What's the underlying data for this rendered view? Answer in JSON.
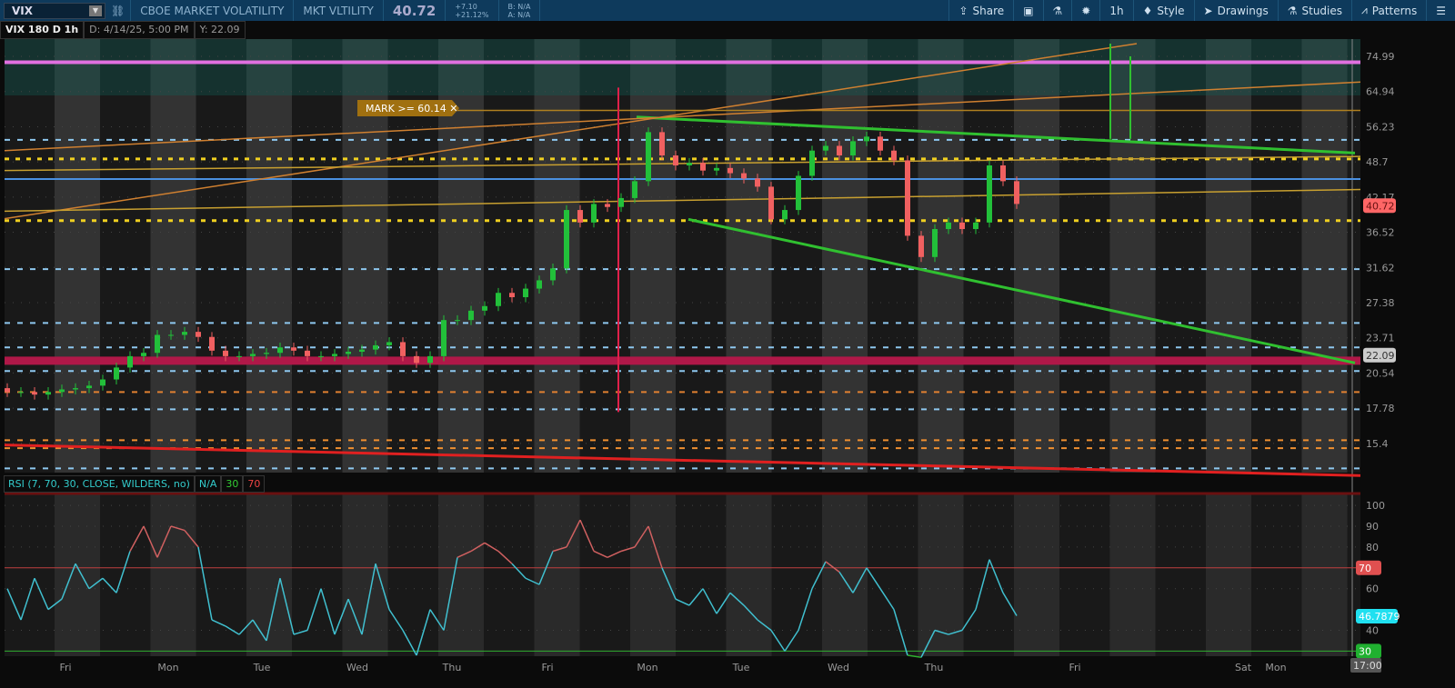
{
  "header": {
    "symbol": "VIX",
    "description": "CBOE MARKET VOLATILITY",
    "short_name": "MKT VLTILITY",
    "last": "40.72",
    "change": "+7.10",
    "change_pct": "+21.12%",
    "bid": "B: N/A",
    "ask": "A: N/A",
    "toolbar": [
      {
        "icon": "share-icon",
        "label": "Share"
      },
      {
        "icon": "chart-settings-icon",
        "label": ""
      },
      {
        "icon": "flask-icon",
        "label": ""
      },
      {
        "icon": "gear-icon",
        "label": ""
      },
      {
        "icon": "",
        "label": "1h"
      },
      {
        "icon": "candle-style-icon",
        "label": "Style"
      },
      {
        "icon": "cursor-icon",
        "label": "Drawings"
      },
      {
        "icon": "flask-icon",
        "label": "Studies"
      },
      {
        "icon": "patterns-icon",
        "label": "Patterns"
      },
      {
        "icon": "menu-icon",
        "label": ""
      }
    ]
  },
  "subheader": {
    "chart": "VIX 180 D 1h",
    "date": "D: 4/14/25, 5:00 PM",
    "y": "Y: 22.09"
  },
  "alert": {
    "label": "MARK >= 60.14 ✕"
  },
  "chart_data": [
    {
      "type": "candlestick",
      "scale": "log",
      "yticks": [
        "74.99",
        "64.94",
        "56.23",
        "48.7",
        "42.17",
        "36.52",
        "31.62",
        "27.38",
        "23.71",
        "20.54",
        "17.78",
        "15.4"
      ],
      "closes": [
        19,
        19,
        18.8,
        19,
        19.2,
        19.3,
        19.5,
        20,
        21,
        22,
        22.3,
        24,
        24,
        24.3,
        23.8,
        22.5,
        22,
        22,
        22.2,
        22.3,
        22.8,
        22.5,
        22,
        22,
        22.2,
        22.4,
        22.6,
        23,
        23.3,
        22,
        21.4,
        22,
        25.5,
        25.5,
        26.5,
        27,
        28.5,
        28,
        29,
        30,
        31.5,
        40,
        38,
        41,
        40.5,
        42,
        45,
        55,
        50,
        48,
        48.5,
        47,
        47.5,
        46.5,
        45.5,
        44,
        38.5,
        40,
        46,
        51,
        52,
        50,
        53,
        54,
        51,
        49,
        36,
        33,
        37,
        38,
        37,
        38,
        48,
        45,
        41
      ],
      "open_first": 19.3,
      "price_label": "40.72",
      "price_color": "#ff6666",
      "cursor_label": "22.09",
      "levels": [
        {
          "price": 73.2,
          "color": "#e070e0",
          "style": "solid"
        },
        {
          "price": 53.3,
          "color": "#8ec8ef",
          "style": "dash"
        },
        {
          "price": 49.3,
          "color": "#f0d020",
          "style": "dot"
        },
        {
          "price": 45.4,
          "color": "#4a90e0",
          "style": "solid"
        },
        {
          "price": 38.3,
          "color": "#f0d020",
          "style": "dot"
        },
        {
          "price": 31.4,
          "color": "#8ec8ef",
          "style": "dash"
        },
        {
          "price": 25.2,
          "color": "#8ec8ef",
          "style": "dash"
        },
        {
          "price": 22.8,
          "color": "#8ec8ef",
          "style": "dash"
        },
        {
          "price": 21.6,
          "color": "#b01848",
          "style": "band"
        },
        {
          "price": 20.7,
          "color": "#8ec8ef",
          "style": "dash"
        },
        {
          "price": 19.0,
          "color": "#e08030",
          "style": "dash"
        },
        {
          "price": 17.7,
          "color": "#8ec8ef",
          "style": "dash"
        },
        {
          "price": 15.6,
          "color": "#f09030",
          "style": "dash"
        },
        {
          "price": 15.1,
          "color": "#f09030",
          "style": "dash"
        },
        {
          "price": 13.9,
          "color": "#8ec8ef",
          "style": "dash"
        }
      ]
    },
    {
      "type": "line",
      "title": "RSI (7, 70, 30, CLOSE, WILDERS, no)",
      "value": "N/A",
      "oversold": "30",
      "overbought": "70",
      "last": "46.7879",
      "yticks": [
        "100",
        "90",
        "80",
        "60",
        "40"
      ],
      "values": [
        60,
        45,
        65,
        50,
        55,
        72,
        60,
        65,
        58,
        78,
        90,
        75,
        90,
        88,
        80,
        45,
        42,
        38,
        45,
        35,
        65,
        38,
        40,
        60,
        38,
        55,
        38,
        72,
        50,
        40,
        28,
        50,
        40,
        75,
        78,
        82,
        78,
        72,
        65,
        62,
        78,
        80,
        93,
        78,
        75,
        78,
        80,
        90,
        70,
        55,
        52,
        60,
        48,
        58,
        52,
        45,
        40,
        30,
        40,
        60,
        73,
        68,
        58,
        70,
        60,
        50,
        28,
        27,
        40,
        38,
        40,
        50,
        74,
        58,
        47
      ]
    }
  ],
  "xaxis": [
    "Fri",
    "Mon",
    "Tue",
    "Wed",
    "Thu",
    "Fri",
    "Mon",
    "Tue",
    "Wed",
    "Thu",
    "Fri",
    "Sat",
    "Mon"
  ],
  "time_label": "17:00"
}
